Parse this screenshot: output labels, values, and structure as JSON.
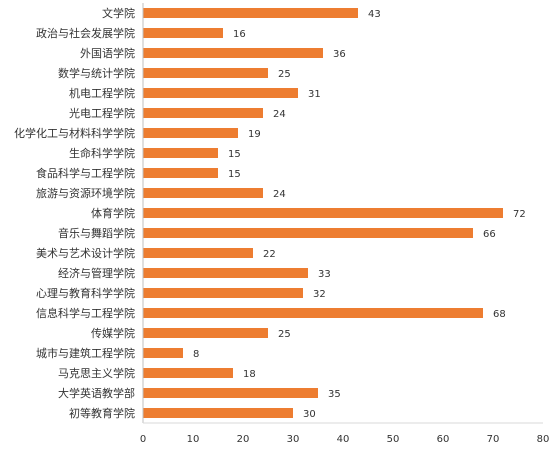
{
  "chart_data": {
    "type": "bar",
    "orientation": "horizontal",
    "categories": [
      "文学院",
      "政治与社会发展学院",
      "外国语学院",
      "数学与统计学院",
      "机电工程学院",
      "光电工程学院",
      "化学化工与材料科学学院",
      "生命科学学院",
      "食品科学与工程学院",
      "旅游与资源环境学院",
      "体育学院",
      "音乐与舞蹈学院",
      "美术与艺术设计学院",
      "经济与管理学院",
      "心理与教育科学学院",
      "信息科学与工程学院",
      "传媒学院",
      "城市与建筑工程学院",
      "马克思主义学院",
      "大学英语教学部",
      "初等教育学院"
    ],
    "values": [
      43,
      16,
      36,
      25,
      31,
      24,
      19,
      15,
      15,
      24,
      72,
      66,
      22,
      33,
      32,
      68,
      25,
      8,
      18,
      35,
      30
    ],
    "xlim": [
      0,
      80
    ],
    "xticks": [
      "0",
      "10",
      "20",
      "30",
      "40",
      "50",
      "60",
      "70",
      "80"
    ],
    "bar_color": "#ED7D31",
    "grid": false,
    "title": "",
    "xlabel": "",
    "ylabel": ""
  }
}
